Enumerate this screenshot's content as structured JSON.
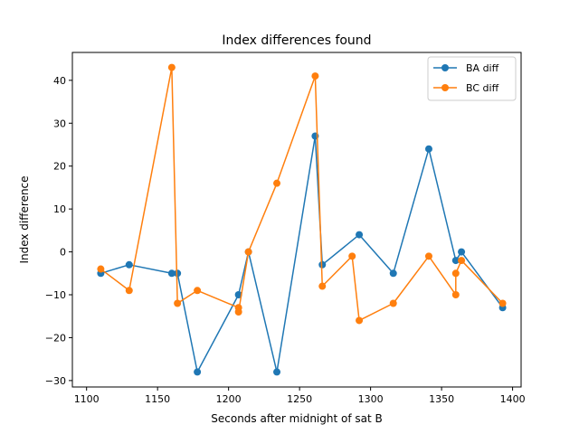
{
  "chart_data": {
    "type": "line",
    "title": "Index differences found",
    "xlabel": "Seconds after midnight of sat B",
    "ylabel": "Index difference",
    "xlim": [
      1090,
      1406
    ],
    "ylim": [
      -31.5,
      46.5
    ],
    "xticks": [
      1100,
      1150,
      1200,
      1250,
      1300,
      1350,
      1400
    ],
    "yticks": [
      -30,
      -20,
      -10,
      0,
      10,
      20,
      30,
      40
    ],
    "grid": false,
    "legend_position": "top-right",
    "series": [
      {
        "name": "BA diff",
        "color": "#1f77b4",
        "marker": "circle",
        "x": [
          1110,
          1130,
          1160,
          1164,
          1178,
          1207,
          1214,
          1234,
          1261,
          1266,
          1292,
          1316,
          1341,
          1360,
          1364,
          1393
        ],
        "y": [
          -5,
          -3,
          -5,
          -5,
          -28,
          -10,
          0,
          -28,
          27,
          -3,
          4,
          -5,
          24,
          -2,
          0,
          -13
        ]
      },
      {
        "name": "BC diff",
        "color": "#ff7f0e",
        "marker": "circle",
        "x": [
          1110,
          1130,
          1160,
          1164,
          1178,
          1207,
          1207,
          1214,
          1234,
          1261,
          1266,
          1287,
          1292,
          1316,
          1341,
          1360,
          1360,
          1364,
          1393
        ],
        "y": [
          -4,
          -9,
          43,
          -12,
          -9,
          -13,
          -14,
          0,
          16,
          41,
          -8,
          -1,
          -16,
          -12,
          -1,
          -10,
          -5,
          -2,
          -12
        ]
      }
    ]
  }
}
